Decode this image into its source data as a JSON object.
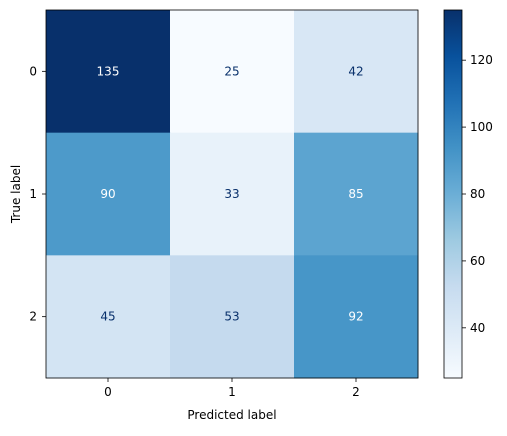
{
  "chart_data": {
    "type": "heatmap",
    "subtype": "confusion-matrix",
    "title": "",
    "xlabel": "Predicted label",
    "ylabel": "True label",
    "x_categories": [
      "0",
      "1",
      "2"
    ],
    "y_categories": [
      "0",
      "1",
      "2"
    ],
    "values": [
      [
        135,
        25,
        42
      ],
      [
        90,
        33,
        85
      ],
      [
        45,
        53,
        92
      ]
    ],
    "colormap": "Blues",
    "color_range": [
      25,
      135
    ],
    "colorbar_ticks": [
      "40",
      "60",
      "80",
      "100",
      "120"
    ],
    "grid": false,
    "text_color_light": "#ffffff",
    "text_color_dark": "#08306b"
  }
}
